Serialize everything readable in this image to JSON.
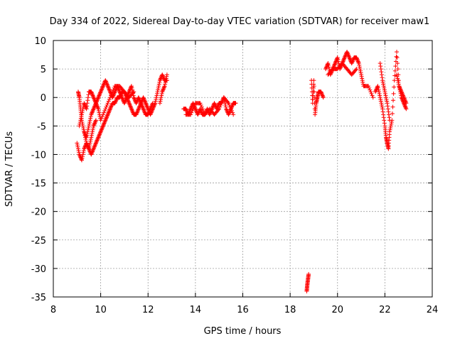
{
  "chart_data": {
    "type": "scatter",
    "title": "Day 334 of 2022, Sidereal Day-to-day VTEC variation (SDTVAR) for receiver maw1",
    "xlabel": "GPS time / hours",
    "ylabel": "SDTVAR / TECUs",
    "xlim": [
      8,
      24
    ],
    "ylim": [
      -35,
      10
    ],
    "xticks": [
      8,
      10,
      12,
      14,
      16,
      18,
      20,
      22,
      24
    ],
    "yticks": [
      10,
      5,
      0,
      -5,
      -10,
      -15,
      -20,
      -25,
      -30,
      -35
    ],
    "xtick_labels": [
      "8",
      "10",
      "12",
      "14",
      "16",
      "18",
      "20",
      "22",
      "24"
    ],
    "ytick_labels": [
      "10",
      "5",
      "0",
      "-5",
      "-10",
      "-15",
      "-20",
      "-25",
      "-30",
      "-35"
    ],
    "grid": true,
    "marker": "+",
    "color": "#ff0000",
    "series": [
      {
        "name": "SDTVAR",
        "segments": [
          {
            "x": [
              9.0,
              9.1,
              9.2,
              9.3,
              9.4,
              9.5,
              9.6,
              9.7,
              9.8,
              9.9,
              10.0,
              10.1,
              10.2,
              10.3,
              10.4,
              10.5,
              10.6,
              10.7,
              10.8,
              10.9,
              11.0,
              11.1,
              11.2,
              11.3,
              11.4,
              11.5,
              11.6,
              11.7,
              11.8,
              11.9,
              12.0,
              12.1,
              12.2,
              12.3,
              12.4,
              12.5,
              12.6,
              12.7,
              12.8
            ],
            "y": [
              -8,
              -10,
              -11,
              -9,
              -8,
              -9,
              -10,
              -9,
              -8,
              -7,
              -6,
              -5,
              -4,
              -3,
              -2,
              -1,
              -1,
              0,
              0,
              1,
              1,
              0,
              -1,
              -2,
              -3,
              -3,
              -2,
              -1,
              0,
              -1,
              -2,
              -3,
              -2,
              -1,
              1,
              3,
              4,
              3,
              3
            ]
          },
          {
            "x": [
              9.05,
              9.1,
              9.15,
              9.2,
              9.3,
              9.4,
              9.5,
              9.6,
              9.7,
              9.8,
              9.9,
              10.0,
              10.1,
              10.2,
              10.3,
              10.4,
              10.5,
              10.6,
              10.7,
              10.8,
              10.9,
              11.0,
              11.1,
              11.2,
              11.3,
              11.4,
              11.5,
              11.6,
              11.7,
              11.8,
              11.9,
              12.0,
              12.1,
              12.2
            ],
            "y": [
              1,
              0,
              -2,
              -4,
              -6,
              -7,
              -5,
              -3,
              -2,
              -1,
              0,
              1,
              2,
              3,
              2,
              1,
              0,
              1,
              2,
              1,
              0,
              -1,
              0,
              1,
              2,
              0,
              -1,
              0,
              -1,
              -2,
              -3,
              -3,
              -2,
              -1
            ]
          },
          {
            "x": [
              9.1,
              9.2,
              9.3,
              9.4,
              9.5,
              9.6,
              9.7,
              9.8,
              9.9,
              10.0,
              10.2,
              10.4,
              10.6,
              10.8,
              11.0,
              11.2,
              11.4
            ],
            "y": [
              -5,
              -3,
              -1,
              -2,
              1,
              1,
              0,
              -1,
              -2,
              -4,
              -2,
              0,
              2,
              2,
              1,
              0,
              1
            ]
          },
          {
            "x": [
              9.3,
              9.4,
              9.5,
              9.6,
              9.7,
              9.8
            ],
            "y": [
              -6,
              -8,
              -9,
              -7,
              -5,
              -4
            ]
          },
          {
            "x": [
              12.5,
              12.6,
              12.7,
              12.8
            ],
            "y": [
              -1,
              1,
              2,
              4
            ]
          },
          {
            "x": [
              13.5,
              13.6,
              13.7,
              13.8,
              13.9,
              14.0,
              14.1,
              14.2,
              14.3,
              14.4,
              14.5,
              14.6,
              14.7,
              14.8,
              14.9,
              15.0,
              15.1,
              15.2,
              15.3,
              15.4,
              15.5,
              15.6,
              15.7
            ],
            "y": [
              -2,
              -2,
              -3,
              -2,
              -1,
              -2,
              -3,
              -2,
              -3,
              -3,
              -2,
              -3,
              -2,
              -1,
              -2,
              -1,
              -1,
              0,
              -2,
              -3,
              -2,
              -1,
              -1
            ]
          },
          {
            "x": [
              13.6,
              13.8,
              14.0,
              14.2,
              14.4,
              14.6,
              14.8,
              15.0,
              15.2,
              15.4,
              15.6
            ],
            "y": [
              -3,
              -3,
              -1,
              -1,
              -3,
              -2,
              -3,
              -2,
              0,
              -1,
              -3
            ]
          },
          {
            "x": [
              18.7,
              18.72,
              18.75,
              18.78
            ],
            "y": [
              -34,
              -33,
              -32,
              -31
            ]
          },
          {
            "x": [
              18.9,
              18.95,
              19.0,
              19.05,
              19.1,
              19.15,
              19.2,
              19.3,
              19.4
            ],
            "y": [
              3,
              -1,
              3,
              -3,
              -1,
              0,
              1,
              1,
              0
            ]
          },
          {
            "x": [
              19.5,
              19.6,
              19.7,
              19.8,
              19.9,
              20.0,
              20.1,
              20.2,
              20.3,
              20.4,
              20.5,
              20.6,
              20.7,
              20.8,
              20.9,
              21.0,
              21.1,
              21.3,
              21.5
            ],
            "y": [
              5,
              6,
              4,
              5,
              6,
              7,
              5,
              6,
              7,
              8,
              7,
              6,
              7,
              7,
              6,
              4,
              2,
              2,
              0
            ]
          },
          {
            "x": [
              19.6,
              19.8,
              20.0,
              20.2,
              20.4,
              20.6,
              20.8
            ],
            "y": [
              4,
              5,
              5,
              6,
              5,
              4,
              5
            ]
          },
          {
            "x": [
              21.6,
              21.7,
              21.8,
              21.9,
              22.0,
              22.05,
              22.1,
              22.15,
              22.2,
              22.3,
              22.4,
              22.5,
              22.6,
              22.7,
              22.8,
              22.9
            ],
            "y": [
              1,
              2,
              0,
              -2,
              -5,
              -7,
              -8,
              -9,
              -6,
              -4,
              3,
              8,
              2,
              0,
              -1,
              -2
            ]
          },
          {
            "x": [
              21.8,
              21.9,
              22.0,
              22.1,
              22.2
            ],
            "y": [
              6,
              3,
              1,
              -1,
              -4
            ]
          },
          {
            "x": [
              22.5,
              22.6,
              22.7,
              22.8,
              22.9
            ],
            "y": [
              4,
              2,
              1,
              0,
              -1
            ]
          }
        ]
      }
    ]
  }
}
